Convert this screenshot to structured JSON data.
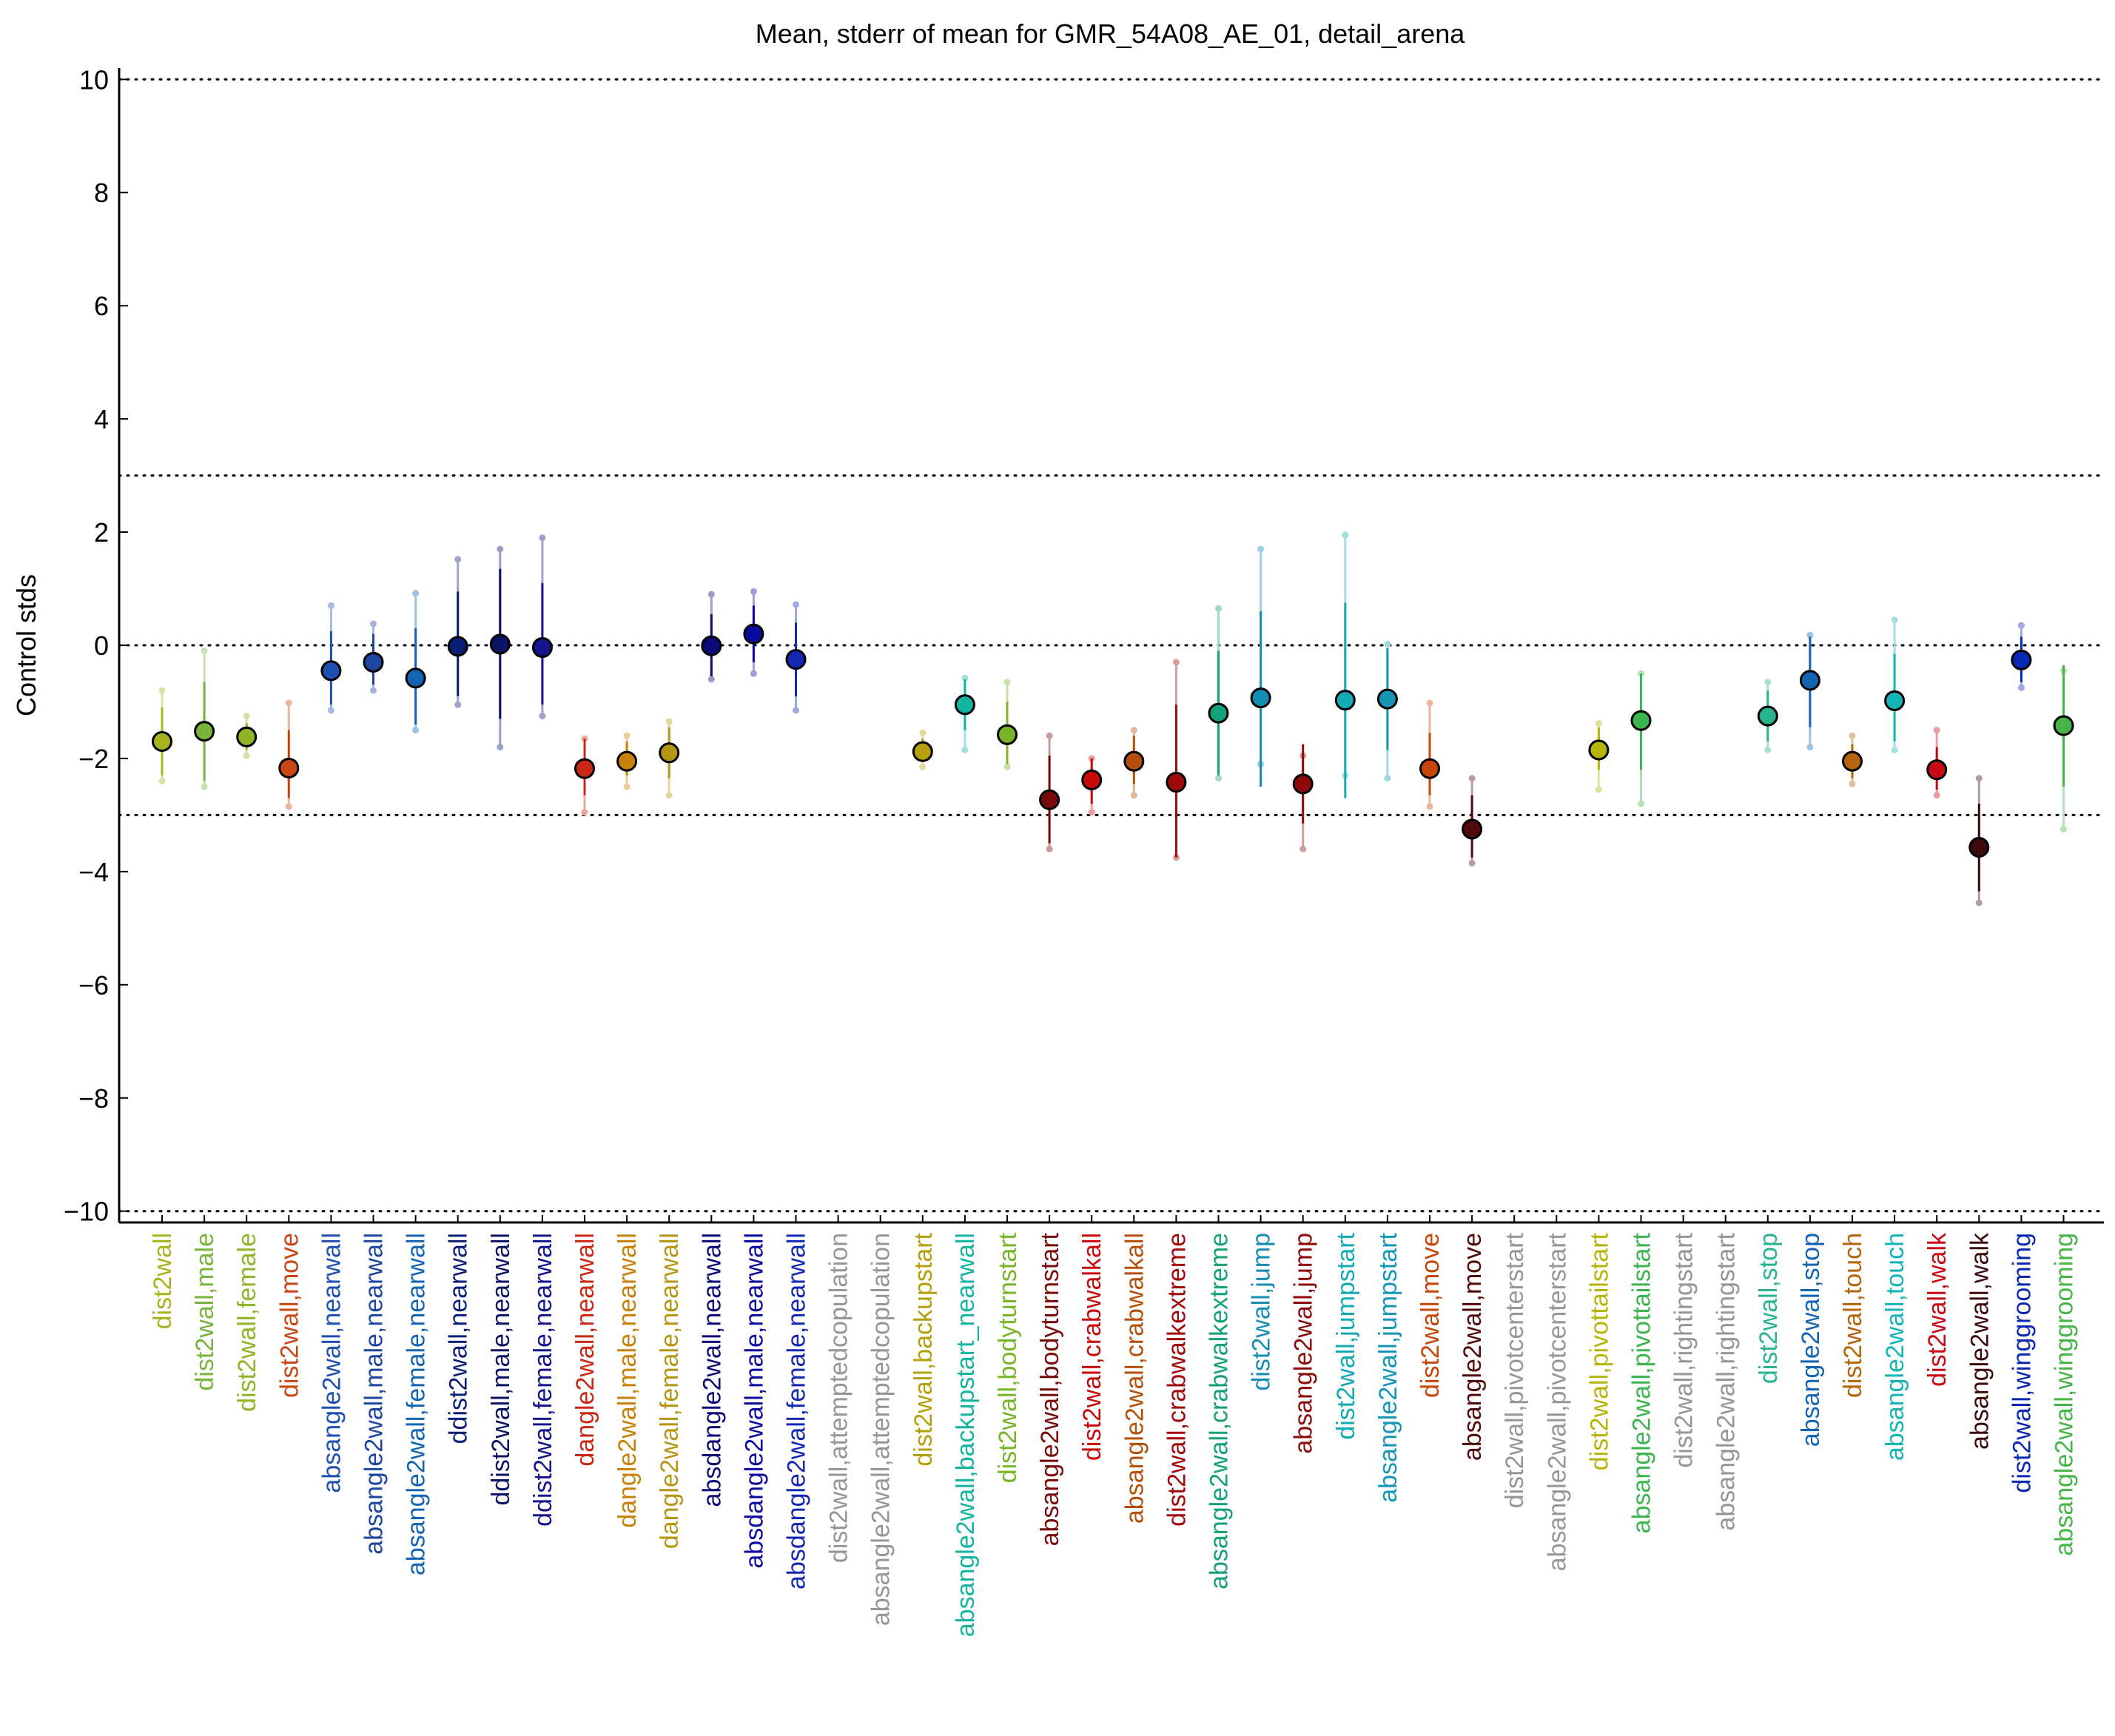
{
  "chart_data": {
    "type": "scatter",
    "title": "Mean, stderr of mean for GMR_54A08_AE_01, detail_arena",
    "ylabel": "Control stds",
    "xlabel": "",
    "ylim": [
      -10.2,
      10.2
    ],
    "yticks": [
      -10,
      -8,
      -6,
      -4,
      -2,
      0,
      2,
      4,
      6,
      8,
      10
    ],
    "ytick_labels": [
      "−10",
      "−8",
      "−6",
      "−4",
      "−2",
      "0",
      "2",
      "4",
      "6",
      "8",
      "10"
    ],
    "reference_lines": [
      10,
      3,
      0,
      -3,
      -10
    ],
    "grid": false,
    "points": [
      {
        "label": "dist2wall",
        "mean": -1.7,
        "se_lo": -2.3,
        "se_hi": -1.1,
        "std_lo": -2.4,
        "std_hi": -0.8,
        "color": "#a8b41e"
      },
      {
        "label": "dist2wall,male",
        "mean": -1.52,
        "se_lo": -2.4,
        "se_hi": -0.65,
        "std_lo": -2.5,
        "std_hi": -0.1,
        "color": "#78b43c"
      },
      {
        "label": "dist2wall,female",
        "mean": -1.62,
        "se_lo": -1.85,
        "se_hi": -1.38,
        "std_lo": -1.95,
        "std_hi": -1.25,
        "color": "#90b428"
      },
      {
        "label": "dist2wall,move",
        "mean": -2.17,
        "se_lo": -2.7,
        "se_hi": -1.5,
        "std_lo": -2.85,
        "std_hi": -1.02,
        "color": "#c84614"
      },
      {
        "label": "absangle2wall,nearwall",
        "mean": -0.45,
        "se_lo": -1.05,
        "se_hi": 0.25,
        "std_lo": -1.15,
        "std_hi": 0.7,
        "color": "#1e50b4"
      },
      {
        "label": "absangle2wall,male,nearwall",
        "mean": -0.3,
        "se_lo": -0.7,
        "se_hi": 0.2,
        "std_lo": -0.8,
        "std_hi": 0.38,
        "color": "#1e46a0"
      },
      {
        "label": "absangle2wall,female,nearwall",
        "mean": -0.58,
        "se_lo": -1.4,
        "se_hi": 0.3,
        "std_lo": -1.5,
        "std_hi": 0.92,
        "color": "#1464b4"
      },
      {
        "label": "ddist2wall,nearwall",
        "mean": -0.02,
        "se_lo": -0.9,
        "se_hi": 0.95,
        "std_lo": -1.05,
        "std_hi": 1.52,
        "color": "#0a1e78"
      },
      {
        "label": "ddist2wall,male,nearwall",
        "mean": 0.02,
        "se_lo": -1.3,
        "se_hi": 1.35,
        "std_lo": -1.8,
        "std_hi": 1.7,
        "color": "#0a1464"
      },
      {
        "label": "ddist2wall,female,nearwall",
        "mean": -0.04,
        "se_lo": -1.05,
        "se_hi": 1.1,
        "std_lo": -1.25,
        "std_hi": 1.9,
        "color": "#14148c"
      },
      {
        "label": "dangle2wall,nearwall",
        "mean": -2.18,
        "se_lo": -2.65,
        "se_hi": -1.65,
        "std_lo": -2.95,
        "std_hi": -1.65,
        "color": "#c82814"
      },
      {
        "label": "dangle2wall,male,nearwall",
        "mean": -2.05,
        "se_lo": -2.3,
        "se_hi": -1.7,
        "std_lo": -2.5,
        "std_hi": -1.6,
        "color": "#c8820a"
      },
      {
        "label": "dangle2wall,female,nearwall",
        "mean": -1.9,
        "se_lo": -2.35,
        "se_hi": -1.45,
        "std_lo": -2.65,
        "std_hi": -1.35,
        "color": "#b49614"
      },
      {
        "label": "absdangle2wall,nearwall",
        "mean": -0.01,
        "se_lo": -0.55,
        "se_hi": 0.55,
        "std_lo": -0.6,
        "std_hi": 0.9,
        "color": "#0a0a78"
      },
      {
        "label": "absdangle2wall,male,nearwall",
        "mean": 0.2,
        "se_lo": -0.3,
        "se_hi": 0.7,
        "std_lo": -0.5,
        "std_hi": 0.95,
        "color": "#0a0aa0"
      },
      {
        "label": "absdangle2wall,female,nearwall",
        "mean": -0.25,
        "se_lo": -0.9,
        "se_hi": 0.4,
        "std_lo": -1.15,
        "std_hi": 0.72,
        "color": "#1428b4"
      },
      {
        "label": "dist2wall,attemptedcopulation",
        "mean": null,
        "color": "#969696"
      },
      {
        "label": "absangle2wall,attemptedcopulation",
        "mean": null,
        "color": "#969696"
      },
      {
        "label": "dist2wall,backupstart",
        "mean": -1.88,
        "se_lo": -2.05,
        "se_hi": -1.65,
        "std_lo": -2.15,
        "std_hi": -1.55,
        "color": "#b4a00a"
      },
      {
        "label": "absangle2wall,backupstart_nearwall",
        "mean": -1.05,
        "se_lo": -1.5,
        "se_hi": -0.6,
        "std_lo": -1.85,
        "std_hi": -0.58,
        "color": "#14b4a0"
      },
      {
        "label": "dist2wall,bodyturnstart",
        "mean": -1.58,
        "se_lo": -2.1,
        "se_hi": -1.0,
        "std_lo": -2.15,
        "std_hi": -0.65,
        "color": "#78b428"
      },
      {
        "label": "absangle2wall,bodyturnstart",
        "mean": -2.73,
        "se_lo": -3.5,
        "se_hi": -1.95,
        "std_lo": -3.6,
        "std_hi": -1.6,
        "color": "#780a0a"
      },
      {
        "label": "dist2wall,crabwalkall",
        "mean": -2.38,
        "se_lo": -2.8,
        "se_hi": -2.0,
        "std_lo": -2.95,
        "std_hi": -2.0,
        "color": "#c80a0a"
      },
      {
        "label": "absangle2wall,crabwalkall",
        "mean": -2.05,
        "se_lo": -2.45,
        "se_hi": -1.6,
        "std_lo": -2.65,
        "std_hi": -1.5,
        "color": "#b4500a"
      },
      {
        "label": "dist2wall,crabwalkextreme",
        "mean": -2.42,
        "se_lo": -3.75,
        "se_hi": -1.05,
        "std_lo": -3.75,
        "std_hi": -0.3,
        "color": "#a00a0a"
      },
      {
        "label": "absangle2wall,crabwalkextreme",
        "mean": -1.2,
        "se_lo": -2.3,
        "se_hi": -0.1,
        "std_lo": -2.35,
        "std_hi": 0.65,
        "color": "#14a078"
      },
      {
        "label": "dist2wall,jump",
        "mean": -0.93,
        "se_lo": -2.5,
        "se_hi": 0.6,
        "std_lo": -2.1,
        "std_hi": 1.7,
        "color": "#148cb4"
      },
      {
        "label": "absangle2wall,jump",
        "mean": -2.45,
        "se_lo": -3.15,
        "se_hi": -1.75,
        "std_lo": -3.6,
        "std_hi": -1.95,
        "color": "#8c0a0a"
      },
      {
        "label": "dist2wall,jumpstart",
        "mean": -0.97,
        "se_lo": -2.7,
        "se_hi": 0.75,
        "std_lo": -2.3,
        "std_hi": 1.95,
        "color": "#14aab4"
      },
      {
        "label": "absangle2wall,jumpstart",
        "mean": -0.95,
        "se_lo": -1.85,
        "se_hi": -0.05,
        "std_lo": -2.35,
        "std_hi": 0.02,
        "color": "#1496b4"
      },
      {
        "label": "dist2wall,move",
        "mean": -2.18,
        "se_lo": -2.65,
        "se_hi": -1.55,
        "std_lo": -2.85,
        "std_hi": -1.02,
        "color": "#c8460a"
      },
      {
        "label": "absangle2wall,move",
        "mean": -3.25,
        "se_lo": -3.75,
        "se_hi": -2.65,
        "std_lo": -3.85,
        "std_hi": -2.35,
        "color": "#500a0a"
      },
      {
        "label": "dist2wall,pivotcenterstart",
        "mean": null,
        "color": "#969696"
      },
      {
        "label": "absangle2wall,pivotcenterstart",
        "mean": null,
        "color": "#969696"
      },
      {
        "label": "dist2wall,pivottailstart",
        "mean": -1.85,
        "se_lo": -2.2,
        "se_hi": -1.45,
        "std_lo": -2.55,
        "std_hi": -1.38,
        "color": "#b4b40a"
      },
      {
        "label": "absangle2wall,pivottailstart",
        "mean": -1.33,
        "se_lo": -2.2,
        "se_hi": -0.5,
        "std_lo": -2.8,
        "std_hi": -0.5,
        "color": "#3cb450"
      },
      {
        "label": "dist2wall,rightingstart",
        "mean": null,
        "color": "#969696"
      },
      {
        "label": "absangle2wall,rightingstart",
        "mean": null,
        "color": "#969696"
      },
      {
        "label": "dist2wall,stop",
        "mean": -1.25,
        "se_lo": -1.7,
        "se_hi": -0.8,
        "std_lo": -1.85,
        "std_hi": -0.65,
        "color": "#28b48c"
      },
      {
        "label": "absangle2wall,stop",
        "mean": -0.62,
        "se_lo": -1.45,
        "se_hi": 0.15,
        "std_lo": -1.8,
        "std_hi": 0.18,
        "color": "#1464b4"
      },
      {
        "label": "dist2wall,touch",
        "mean": -2.05,
        "se_lo": -2.35,
        "se_hi": -1.75,
        "std_lo": -2.45,
        "std_hi": -1.6,
        "color": "#b4640a"
      },
      {
        "label": "absangle2wall,touch",
        "mean": -0.98,
        "se_lo": -1.7,
        "se_hi": -0.15,
        "std_lo": -1.85,
        "std_hi": 0.45,
        "color": "#14b4b4"
      },
      {
        "label": "dist2wall,walk",
        "mean": -2.2,
        "se_lo": -2.55,
        "se_hi": -1.8,
        "std_lo": -2.65,
        "std_hi": -1.5,
        "color": "#c80a14"
      },
      {
        "label": "absangle2wall,walk",
        "mean": -3.57,
        "se_lo": -4.35,
        "se_hi": -2.8,
        "std_lo": -4.55,
        "std_hi": -2.35,
        "color": "#3c0a0a"
      },
      {
        "label": "dist2wall,winggrooming",
        "mean": -0.26,
        "se_lo": -0.65,
        "se_hi": 0.15,
        "std_lo": -0.75,
        "std_hi": 0.35,
        "color": "#0a28b4"
      },
      {
        "label": "absangle2wall,winggrooming",
        "mean": -1.42,
        "se_lo": -2.5,
        "se_hi": -0.35,
        "std_lo": -3.25,
        "std_hi": -0.45,
        "color": "#46b446"
      }
    ]
  }
}
